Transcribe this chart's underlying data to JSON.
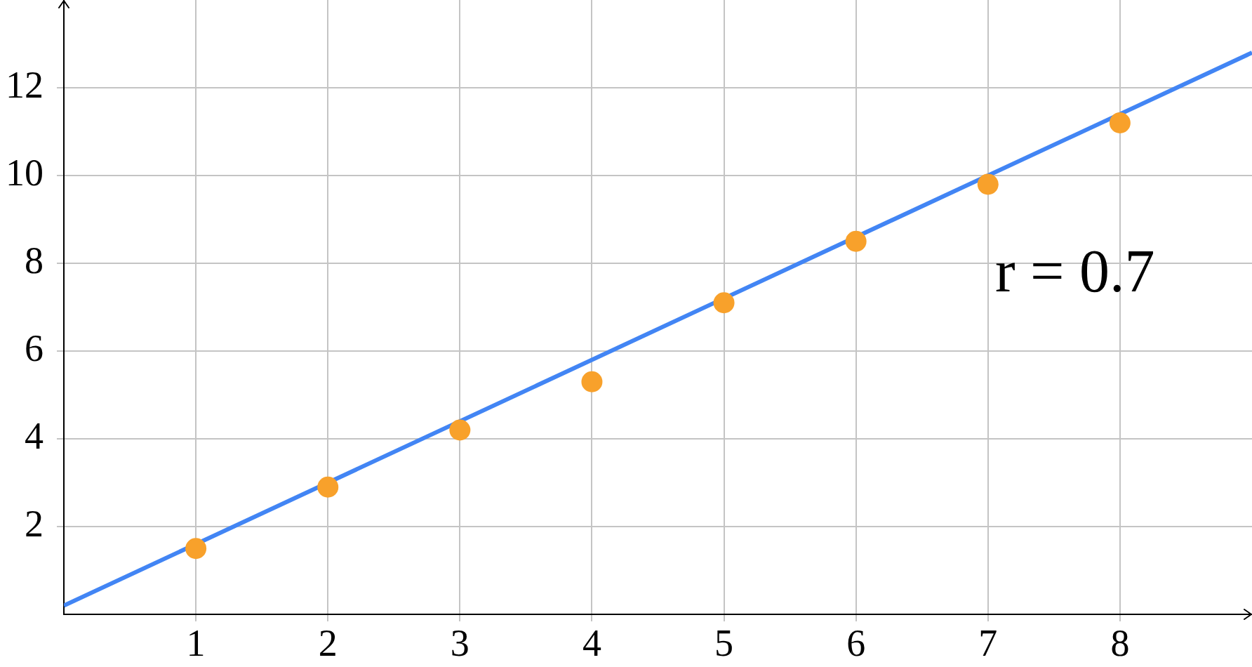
{
  "chart_data": {
    "type": "scatter",
    "xlim": [
      0,
      9
    ],
    "ylim": [
      0,
      14
    ],
    "xticks": [
      1,
      2,
      3,
      4,
      5,
      6,
      7,
      8
    ],
    "yticks": [
      2,
      4,
      6,
      8,
      10,
      12
    ],
    "grid": true,
    "marker": "circle",
    "annotations": [
      "r = 0.7"
    ],
    "series": [
      {
        "color": "#f8a12b",
        "x": [
          1,
          2,
          3,
          4,
          5,
          6,
          7,
          8
        ],
        "values": [
          1.5,
          2.9,
          4.2,
          5.3,
          7.1,
          8.5,
          9.8,
          11.2
        ]
      },
      {
        "type": "line",
        "color": "#4285f4",
        "x": [
          0,
          9
        ],
        "values": [
          0.2,
          12.8
        ],
        "marker": "none"
      }
    ]
  }
}
